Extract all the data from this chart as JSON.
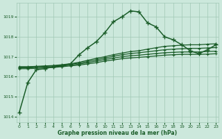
{
  "bg_color": "#cce8dc",
  "grid_color": "#a0c8b4",
  "line_color": "#1a5c28",
  "xlabel": "Graphe pression niveau de la mer (hPa)",
  "xlabel_color": "#1a5c28",
  "ylim": [
    1013.7,
    1019.7
  ],
  "xlim": [
    -0.3,
    23.3
  ],
  "yticks": [
    1014,
    1015,
    1016,
    1017,
    1018,
    1019
  ],
  "xticks": [
    0,
    1,
    2,
    3,
    4,
    5,
    6,
    7,
    8,
    9,
    10,
    11,
    12,
    13,
    14,
    15,
    16,
    17,
    18,
    19,
    20,
    21,
    22,
    23
  ],
  "main_line": [
    1014.2,
    1015.7,
    1016.35,
    1016.4,
    1016.5,
    1016.55,
    1016.65,
    1017.1,
    1017.45,
    1017.75,
    1018.2,
    1018.75,
    1019.0,
    1019.3,
    1019.25,
    1018.7,
    1018.5,
    1018.0,
    1017.85,
    1017.6,
    1017.3,
    1017.15,
    1017.35,
    1017.6
  ],
  "ref_line1": [
    1016.5,
    1016.5,
    1016.52,
    1016.54,
    1016.56,
    1016.6,
    1016.65,
    1016.72,
    1016.82,
    1016.92,
    1017.0,
    1017.1,
    1017.18,
    1017.26,
    1017.3,
    1017.38,
    1017.45,
    1017.52,
    1017.55,
    1017.58,
    1017.6,
    1017.6,
    1017.63,
    1017.65
  ],
  "ref_line2": [
    1016.48,
    1016.48,
    1016.5,
    1016.52,
    1016.54,
    1016.58,
    1016.62,
    1016.68,
    1016.76,
    1016.85,
    1016.93,
    1017.02,
    1017.1,
    1017.16,
    1017.2,
    1017.25,
    1017.3,
    1017.35,
    1017.38,
    1017.4,
    1017.42,
    1017.42,
    1017.44,
    1017.46
  ],
  "ref_line3": [
    1016.44,
    1016.44,
    1016.46,
    1016.48,
    1016.5,
    1016.54,
    1016.58,
    1016.63,
    1016.7,
    1016.78,
    1016.86,
    1016.93,
    1017.0,
    1017.05,
    1017.08,
    1017.12,
    1017.16,
    1017.2,
    1017.22,
    1017.24,
    1017.24,
    1017.24,
    1017.26,
    1017.28
  ],
  "ref_line4": [
    1016.4,
    1016.4,
    1016.42,
    1016.44,
    1016.46,
    1016.5,
    1016.54,
    1016.58,
    1016.64,
    1016.7,
    1016.78,
    1016.84,
    1016.9,
    1016.94,
    1016.97,
    1017.0,
    1017.04,
    1017.08,
    1017.1,
    1017.12,
    1017.12,
    1017.12,
    1017.13,
    1017.15
  ]
}
